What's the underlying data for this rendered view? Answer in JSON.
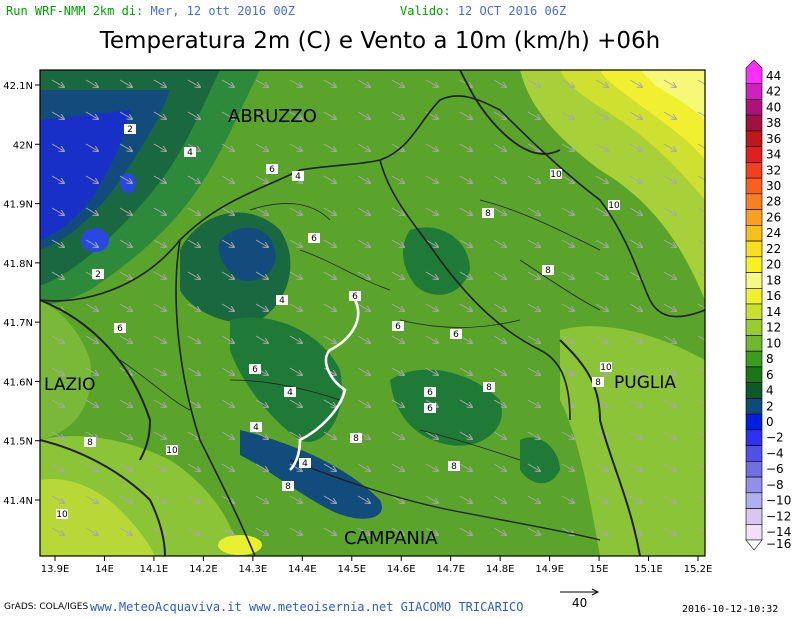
{
  "header": {
    "run_label": "Run WRF-NMM 2km di:",
    "run_value": "Mer, 12 ott 2016 00Z",
    "valid_label": "Valido:",
    "valid_value": "12 OCT 2016 06Z"
  },
  "title": "Temperatura 2m (C) e Vento a 10m (km/h) +06h",
  "map": {
    "lon_ticks": [
      "13.9E",
      "14E",
      "14.1E",
      "14.2E",
      "14.3E",
      "14.4E",
      "14.5E",
      "14.6E",
      "14.7E",
      "14.8E",
      "14.9E",
      "15E",
      "15.1E",
      "15.2E"
    ],
    "lat_ticks": [
      "42.1N",
      "42N",
      "41.9N",
      "41.8N",
      "41.7N",
      "41.6N",
      "41.5N",
      "41.4N"
    ],
    "regions": [
      {
        "name": "ABRUZZO"
      },
      {
        "name": "LAZIO"
      },
      {
        "name": "PUGLIA"
      },
      {
        "name": "CAMPANIA"
      }
    ],
    "contour_labels": [
      {
        "text": "2"
      },
      {
        "text": "4"
      },
      {
        "text": "6"
      },
      {
        "text": "4"
      },
      {
        "text": "6"
      },
      {
        "text": "2"
      },
      {
        "text": "6"
      },
      {
        "text": "4"
      },
      {
        "text": "6"
      },
      {
        "text": "6"
      },
      {
        "text": "6"
      },
      {
        "text": "6"
      },
      {
        "text": "4"
      },
      {
        "text": "4"
      },
      {
        "text": "4"
      },
      {
        "text": "6"
      },
      {
        "text": "8"
      },
      {
        "text": "8"
      },
      {
        "text": "8"
      },
      {
        "text": "8"
      },
      {
        "text": "10"
      },
      {
        "text": "10"
      },
      {
        "text": "10"
      },
      {
        "text": "8"
      },
      {
        "text": "10"
      },
      {
        "text": "8"
      },
      {
        "text": "10"
      },
      {
        "text": "8"
      },
      {
        "text": "8"
      },
      {
        "text": "6"
      }
    ],
    "wind_legend_value": "40"
  },
  "colorbar": {
    "labels": [
      "44",
      "42",
      "40",
      "38",
      "36",
      "34",
      "32",
      "30",
      "28",
      "26",
      "24",
      "22",
      "20",
      "18",
      "16",
      "14",
      "12",
      "10",
      "8",
      "6",
      "4",
      "2",
      "0",
      "−2",
      "−4",
      "−6",
      "−8",
      "−10",
      "−12",
      "−14",
      "−16"
    ],
    "colors": [
      "#ff30ff",
      "#d020c0",
      "#b0107a",
      "#a01040",
      "#c01818",
      "#e02020",
      "#f04020",
      "#f86020",
      "#f88020",
      "#f8a020",
      "#f8c018",
      "#f8e020",
      "#f8f020",
      "#f8f888",
      "#f0f030",
      "#c8e030",
      "#98cc30",
      "#70b830",
      "#3c9c20",
      "#187818",
      "#0a5a2a",
      "#104a78",
      "#0020e0",
      "#3030f0",
      "#5050e8",
      "#7070e0",
      "#9090e8",
      "#b0b0f0",
      "#d8c8f0",
      "#f0e0f8",
      "#ffffff"
    ]
  },
  "footer": {
    "grads": "GrADS: COLA/IGES",
    "links": "www.MeteoAcquaviva.it www.meteoisernia.net GIACOMO TRICARICO",
    "date": "2016-10-12-10:32"
  }
}
